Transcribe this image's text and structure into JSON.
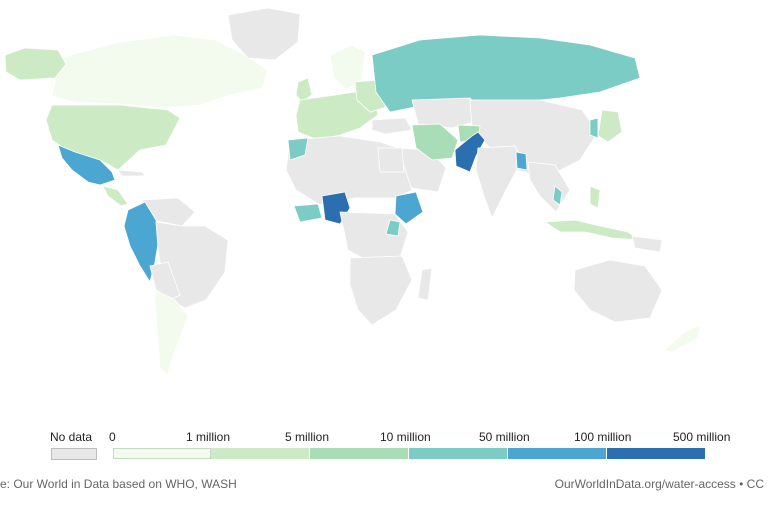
{
  "colors": {
    "no_data": "#e8e8e8",
    "bins": [
      "#f2fbee",
      "#ccebc5",
      "#a8ddb5",
      "#7bccc4",
      "#4ba7d1",
      "#2c6fb0"
    ]
  },
  "legend": {
    "no_data_label": "No data",
    "tick_labels": [
      "0",
      "1 million",
      "5 million",
      "10 million",
      "50 million",
      "100 million",
      "500 million"
    ]
  },
  "footer": {
    "source": "e: Our World in Data based on WHO, WASH",
    "url": "OurWorldInData.org/water-access • CC"
  },
  "countries": [
    {
      "id": "pakistan",
      "bin": 5
    },
    {
      "id": "nigeria",
      "bin": 5
    },
    {
      "id": "mexico",
      "bin": 4
    },
    {
      "id": "ethiopia",
      "bin": 4
    },
    {
      "id": "colombia-ecuador-peru",
      "bin": 4
    },
    {
      "id": "russia",
      "bin": 3
    },
    {
      "id": "iran",
      "bin": 2
    },
    {
      "id": "usa",
      "bin": 1
    },
    {
      "id": "canada",
      "bin": 0
    }
  ]
}
